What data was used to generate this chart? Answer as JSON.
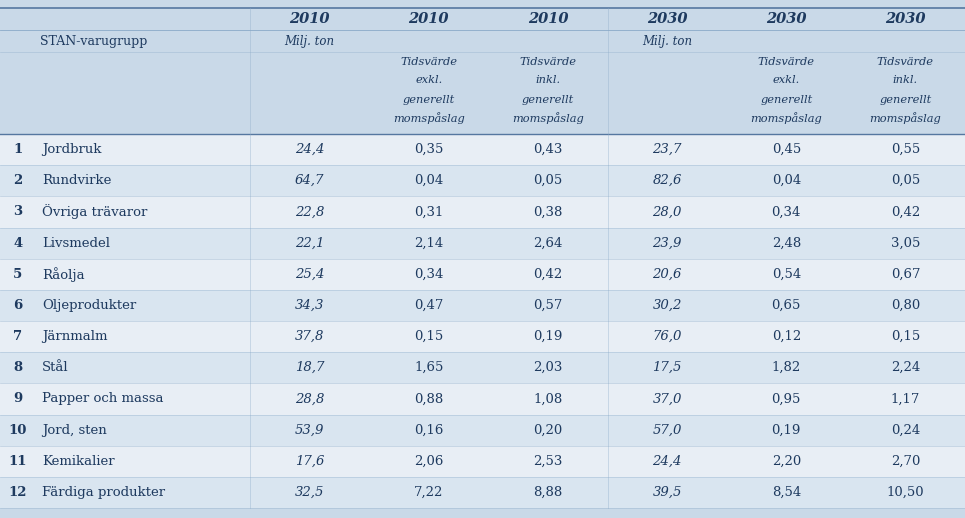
{
  "year_headers": [
    "2010",
    "2010",
    "2010",
    "2030",
    "2030",
    "2030"
  ],
  "subheader_col1": "STAN-varugrupp",
  "col_subheaders": [
    [
      "Milj. ton",
      "",
      "",
      ""
    ],
    [
      "Tidsvärde",
      "exkl.",
      "generellt",
      "momspåslag"
    ],
    [
      "Tidsvärde",
      "inkl.",
      "generellt",
      "momspåslag"
    ],
    [
      "Milj. ton",
      "",
      "",
      ""
    ],
    [
      "Tidsvärde",
      "exkl.",
      "generellt",
      "momspåslag"
    ],
    [
      "Tidsvärde",
      "inkl.",
      "generellt",
      "momspåslag"
    ]
  ],
  "rows": [
    [
      "1",
      "Jordbruk",
      "24,4",
      "0,35",
      "0,43",
      "23,7",
      "0,45",
      "0,55"
    ],
    [
      "2",
      "Rundvirke",
      "64,7",
      "0,04",
      "0,05",
      "82,6",
      "0,04",
      "0,05"
    ],
    [
      "3",
      "Övriga trävaror",
      "22,8",
      "0,31",
      "0,38",
      "28,0",
      "0,34",
      "0,42"
    ],
    [
      "4",
      "Livsmedel",
      "22,1",
      "2,14",
      "2,64",
      "23,9",
      "2,48",
      "3,05"
    ],
    [
      "5",
      "Råolja",
      "25,4",
      "0,34",
      "0,42",
      "20,6",
      "0,54",
      "0,67"
    ],
    [
      "6",
      "Oljeprodukter",
      "34,3",
      "0,47",
      "0,57",
      "30,2",
      "0,65",
      "0,80"
    ],
    [
      "7",
      "Järnmalm",
      "37,8",
      "0,15",
      "0,19",
      "76,0",
      "0,12",
      "0,15"
    ],
    [
      "8",
      "Stål",
      "18,7",
      "1,65",
      "2,03",
      "17,5",
      "1,82",
      "2,24"
    ],
    [
      "9",
      "Papper och massa",
      "28,8",
      "0,88",
      "1,08",
      "37,0",
      "0,95",
      "1,17"
    ],
    [
      "10",
      "Jord, sten",
      "53,9",
      "0,16",
      "0,20",
      "57,0",
      "0,19",
      "0,24"
    ],
    [
      "11",
      "Kemikalier",
      "17,6",
      "2,06",
      "2,53",
      "24,4",
      "2,20",
      "2,70"
    ],
    [
      "12",
      "Färdiga produkter",
      "32,5",
      "7,22",
      "8,88",
      "39,5",
      "8,54",
      "10,50"
    ]
  ],
  "bg_color": "#c9d9e8",
  "row_color_even": "#d9e5f0",
  "row_color_odd": "#e8eef5",
  "text_color": "#1e3a5f",
  "line_color": "#8aaac8",
  "header_line_color": "#5577a0"
}
